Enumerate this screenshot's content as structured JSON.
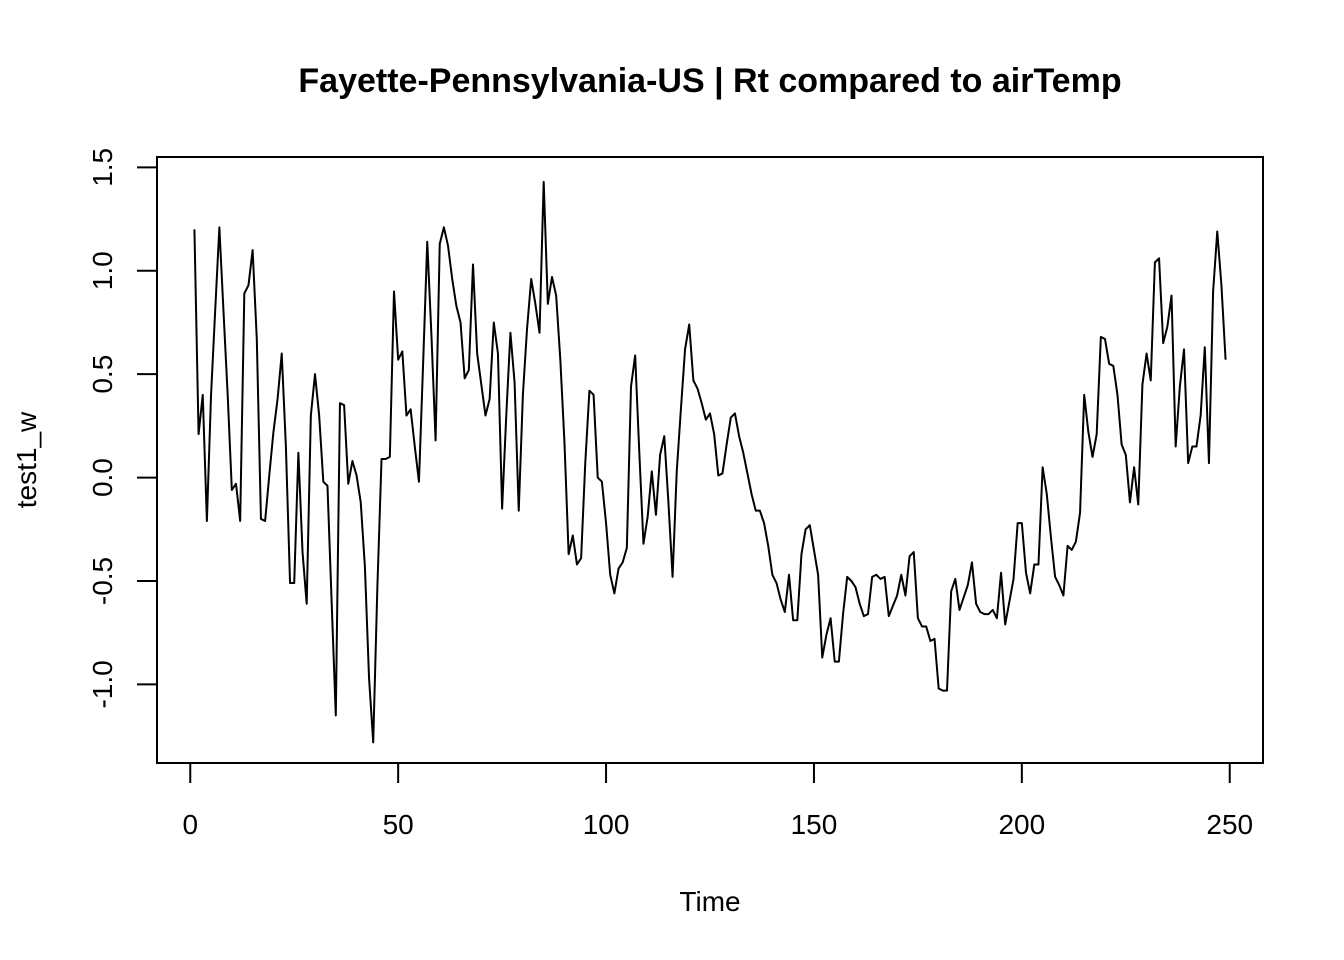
{
  "chart_data": {
    "type": "line",
    "title": "Fayette-Pennsylvania-US | Rt compared to airTemp",
    "xlabel": "Time",
    "ylabel": "test1_w",
    "xlim": [
      -8,
      258
    ],
    "ylim": [
      -1.38,
      1.55
    ],
    "x_ticks": [
      0,
      50,
      100,
      150,
      200,
      250
    ],
    "x_tick_labels": [
      "0",
      "50",
      "100",
      "150",
      "200",
      "250"
    ],
    "y_ticks": [
      -1.0,
      -0.5,
      0.0,
      0.5,
      1.0,
      1.5
    ],
    "y_tick_labels": [
      "-1.0",
      "-0.5",
      "0.0",
      "0.5",
      "1.0",
      "1.5"
    ],
    "grid": false,
    "legend": "none",
    "line_color": "#000000",
    "series": [
      {
        "values": [
          1.2,
          0.21,
          0.4,
          -0.21,
          0.4,
          0.81,
          1.21,
          0.8,
          0.4,
          -0.06,
          -0.03,
          -0.21,
          0.89,
          0.93,
          1.1,
          0.67,
          -0.2,
          -0.21,
          0.01,
          0.22,
          0.38,
          0.6,
          0.15,
          -0.51,
          -0.51,
          0.12,
          -0.36,
          -0.61,
          0.3,
          0.5,
          0.3,
          -0.02,
          -0.04,
          -0.6,
          -1.15,
          0.36,
          0.35,
          -0.03,
          0.08,
          0.01,
          -0.12,
          -0.43,
          -0.97,
          -1.28,
          -0.53,
          0.09,
          0.09,
          0.1,
          0.9,
          0.57,
          0.61,
          0.3,
          0.33,
          0.15,
          -0.02,
          0.55,
          1.14,
          0.69,
          0.18,
          1.13,
          1.21,
          1.12,
          0.96,
          0.83,
          0.75,
          0.48,
          0.52,
          1.03,
          0.6,
          0.45,
          0.3,
          0.38,
          0.75,
          0.6,
          -0.15,
          0.3,
          0.7,
          0.46,
          -0.16,
          0.4,
          0.72,
          0.96,
          0.84,
          0.7,
          1.43,
          0.84,
          0.97,
          0.88,
          0.57,
          0.17,
          -0.37,
          -0.28,
          -0.42,
          -0.39,
          0.07,
          0.42,
          0.4,
          0.0,
          -0.02,
          -0.22,
          -0.47,
          -0.56,
          -0.44,
          -0.41,
          -0.34,
          0.44,
          0.59,
          0.12,
          -0.32,
          -0.19,
          0.03,
          -0.18,
          0.11,
          0.2,
          -0.12,
          -0.48,
          0.03,
          0.33,
          0.62,
          0.74,
          0.47,
          0.43,
          0.36,
          0.28,
          0.31,
          0.21,
          0.01,
          0.02,
          0.16,
          0.29,
          0.31,
          0.2,
          0.12,
          0.02,
          -0.08,
          -0.16,
          -0.16,
          -0.22,
          -0.33,
          -0.47,
          -0.51,
          -0.59,
          -0.65,
          -0.47,
          -0.69,
          -0.69,
          -0.37,
          -0.25,
          -0.23,
          -0.35,
          -0.47,
          -0.87,
          -0.76,
          -0.68,
          -0.89,
          -0.89,
          -0.66,
          -0.48,
          -0.5,
          -0.53,
          -0.61,
          -0.67,
          -0.66,
          -0.48,
          -0.47,
          -0.49,
          -0.48,
          -0.67,
          -0.62,
          -0.57,
          -0.47,
          -0.57,
          -0.38,
          -0.36,
          -0.68,
          -0.72,
          -0.72,
          -0.79,
          -0.78,
          -1.02,
          -1.03,
          -1.03,
          -0.55,
          -0.49,
          -0.64,
          -0.58,
          -0.52,
          -0.41,
          -0.61,
          -0.65,
          -0.66,
          -0.66,
          -0.64,
          -0.68,
          -0.46,
          -0.71,
          -0.6,
          -0.49,
          -0.22,
          -0.22,
          -0.46,
          -0.56,
          -0.42,
          -0.42,
          0.05,
          -0.08,
          -0.29,
          -0.48,
          -0.52,
          -0.57,
          -0.33,
          -0.35,
          -0.31,
          -0.17,
          0.4,
          0.22,
          0.1,
          0.21,
          0.68,
          0.67,
          0.55,
          0.54,
          0.4,
          0.16,
          0.11,
          -0.12,
          0.05,
          -0.13,
          0.45,
          0.6,
          0.47,
          1.04,
          1.06,
          0.65,
          0.73,
          0.88,
          0.15,
          0.44,
          0.62,
          0.07,
          0.15,
          0.15,
          0.3,
          0.63,
          0.07,
          0.9,
          1.19,
          0.93,
          0.57
        ]
      }
    ]
  }
}
